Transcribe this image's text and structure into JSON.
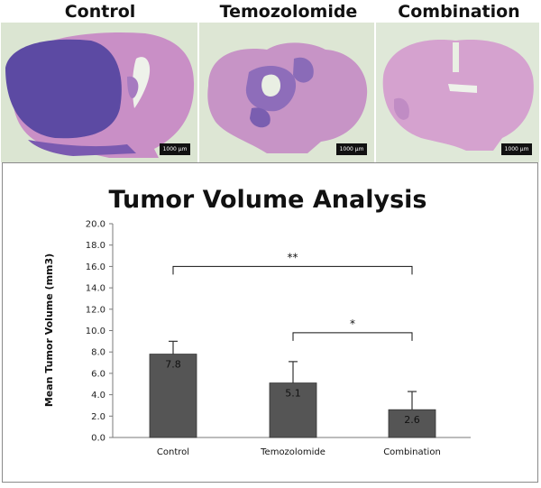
{
  "panels": [
    {
      "title": "Control",
      "scale_label": "1000 μm",
      "image": "H&E brain section, control, large dark-purple tumor mass"
    },
    {
      "title": "Temozolomide",
      "scale_label": "1000 μm",
      "image": "H&E brain section, temozolomide, medium tumor"
    },
    {
      "title": "Combination",
      "scale_label": "1000 μm",
      "image": "H&E brain section, combination, small tumor"
    }
  ],
  "chart_data": {
    "type": "bar",
    "title": "Tumor Volume Analysis",
    "ylabel": "Mean Tumor Volume (mm3)",
    "xlabel": "",
    "categories": [
      "Control",
      "Temozolomide",
      "Combination"
    ],
    "values": [
      7.8,
      5.1,
      2.6
    ],
    "value_labels": [
      "7.8",
      "5.1",
      "2.6"
    ],
    "error_upper": [
      9.0,
      7.1,
      4.3
    ],
    "ylim": [
      0,
      20
    ],
    "yticks": [
      0,
      2,
      4,
      6,
      8,
      10,
      12,
      14,
      16,
      18,
      20
    ],
    "ytick_labels": [
      "0.0",
      "2.0",
      "4.0",
      "6.0",
      "8.0",
      "10.0",
      "12.0",
      "14.0",
      "16.0",
      "18.0",
      "20.0"
    ],
    "bar_color": "#555555",
    "grid": false,
    "significance": [
      {
        "from": 0,
        "to": 2,
        "y": 16.0,
        "label": "**"
      },
      {
        "from": 1,
        "to": 2,
        "y": 9.8,
        "label": "*"
      }
    ]
  }
}
